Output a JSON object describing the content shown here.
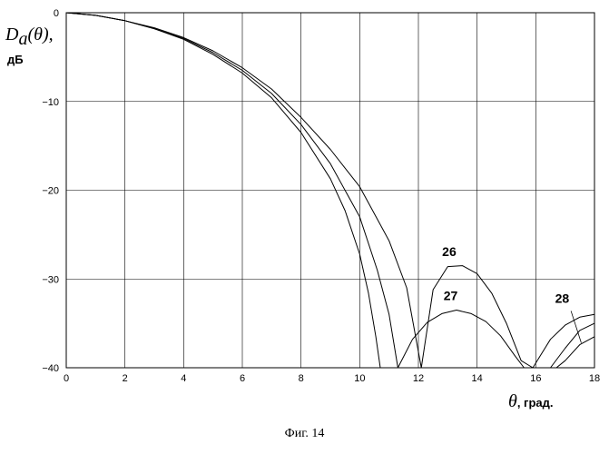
{
  "chart_data": {
    "type": "line",
    "ylabel_main": "D",
    "ylabel_sub": "a",
    "ylabel_arg": "(θ),",
    "ylabel_unit": "дБ",
    "xlabel_symbol": "θ",
    "xlabel_unit": ", град.",
    "caption": "Фиг. 14",
    "xlim": [
      0,
      18
    ],
    "ylim": [
      -40,
      0
    ],
    "xticks": [
      0,
      2,
      4,
      6,
      8,
      10,
      12,
      14,
      16,
      18
    ],
    "yticks": [
      0,
      -10,
      -20,
      -30,
      -40
    ],
    "grid": true,
    "line_color": "#000000",
    "series": [
      {
        "label": "26",
        "x": [
          0,
          1,
          2,
          3,
          4,
          5,
          6,
          7,
          8,
          9,
          10,
          11,
          11.6,
          12.1,
          12.5,
          13,
          13.5,
          14,
          14.5,
          15,
          15.5,
          15.9,
          16.5,
          17,
          17.5,
          18
        ],
        "y": [
          0,
          -0.3,
          -0.9,
          -1.7,
          -2.8,
          -4.3,
          -6.2,
          -8.6,
          -11.8,
          -15.4,
          -19.6,
          -25.7,
          -31,
          -40,
          -31.2,
          -28.6,
          -28.5,
          -29.4,
          -31.6,
          -35,
          -39.2,
          -40,
          -36.8,
          -35.2,
          -34.3,
          -34
        ]
      },
      {
        "label": "27",
        "x": [
          0,
          1,
          2,
          3,
          4,
          5,
          6,
          7,
          8,
          9,
          10,
          10.6,
          11,
          11.3,
          11.8,
          12.3,
          12.8,
          13.3,
          13.8,
          14.3,
          14.8,
          15.3,
          15.6,
          16.5,
          17,
          17.5,
          18
        ],
        "y": [
          0,
          -0.3,
          -0.9,
          -1.8,
          -2.9,
          -4.5,
          -6.5,
          -9.1,
          -12.6,
          -17,
          -23,
          -29,
          -34,
          -40,
          -36.8,
          -34.9,
          -33.9,
          -33.5,
          -33.9,
          -34.8,
          -36.4,
          -38.7,
          -40,
          -40,
          -37.8,
          -35.8,
          -35
        ]
      },
      {
        "label": "28",
        "x": [
          0,
          1,
          2,
          3,
          4,
          5,
          6,
          7,
          8,
          9,
          9.5,
          10,
          10.3,
          10.55,
          10.7
        ],
        "y": [
          0,
          -0.3,
          -0.9,
          -1.8,
          -3,
          -4.7,
          -6.8,
          -9.6,
          -13.5,
          -18.7,
          -22.3,
          -27.2,
          -31.6,
          -36.5,
          -40
        ]
      },
      {
        "label": "",
        "x": [
          16.7,
          17,
          17.5,
          18
        ],
        "y": [
          -40,
          -39.2,
          -37.4,
          -36.5
        ]
      }
    ],
    "curve_labels": [
      {
        "text": "26",
        "x": 13.05,
        "y": -27.4
      },
      {
        "text": "27",
        "x": 13.1,
        "y": -32.4
      },
      {
        "text": "28",
        "x": 16.9,
        "y": -32.7
      }
    ]
  }
}
